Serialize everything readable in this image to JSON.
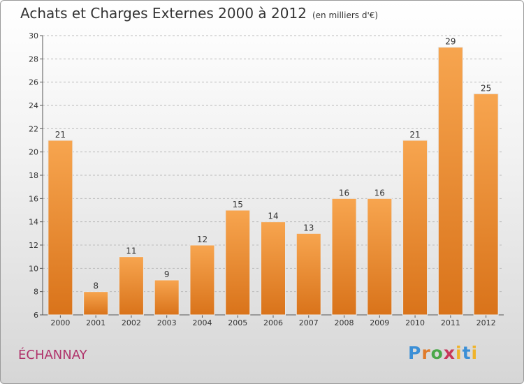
{
  "header": {
    "title": "Achats et Charges Externes 2000 à 2012",
    "unit": "(en milliers d'€)"
  },
  "footer": {
    "commune": "ÉCHANNAY",
    "logo": "Proxiti"
  },
  "colors": {
    "bar_light": "#f7a54f",
    "bar_dark": "#d9731a",
    "grid": "#bbbbbb",
    "axis": "#555555",
    "commune": "#b0336b"
  },
  "chart_data": {
    "type": "bar",
    "title": "Achats et Charges Externes 2000 à 2012",
    "subtitle": "(en milliers d'€)",
    "categories": [
      "2000",
      "2001",
      "2002",
      "2003",
      "2004",
      "2005",
      "2006",
      "2007",
      "2008",
      "2009",
      "2010",
      "2011",
      "2012"
    ],
    "values": [
      21,
      8,
      11,
      9,
      12,
      15,
      14,
      13,
      16,
      16,
      21,
      29,
      25
    ],
    "xlabel": "",
    "ylabel": "",
    "ylim": [
      6,
      30
    ],
    "yticks": [
      6,
      8,
      10,
      12,
      14,
      16,
      18,
      20,
      22,
      24,
      26,
      28,
      30
    ],
    "grid": true,
    "data_labels": true
  }
}
